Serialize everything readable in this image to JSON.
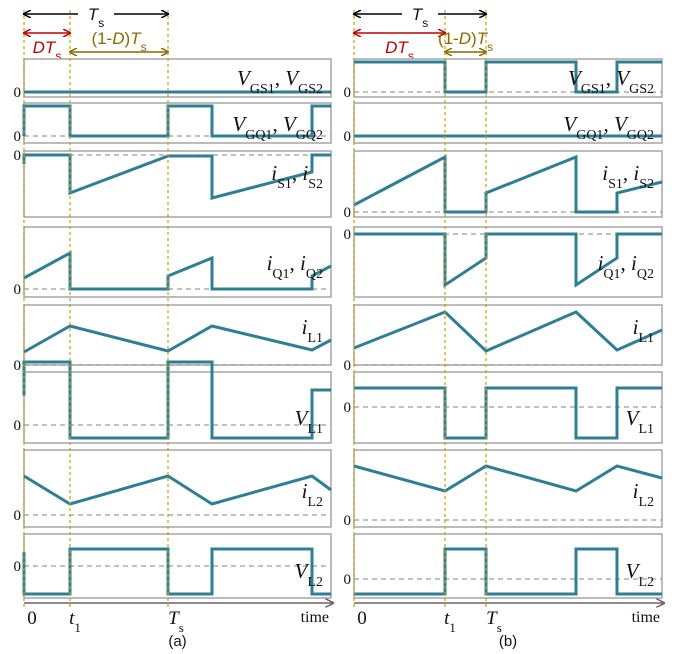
{
  "caption_a": "(a)",
  "caption_b": "(b)",
  "period_label": "T",
  "period_sub": "s",
  "duty_label": "DT",
  "duty_sub": "s",
  "off_label_prefix": "(1-",
  "off_label_d": "D",
  "off_label_suffix": ")",
  "off_label_t": "T",
  "off_label_sub": "s",
  "zero_label": "0",
  "axis_label": "time",
  "ticks": {
    "zero": "0",
    "t1": "t",
    "t1_sub": "1",
    "ts": "T",
    "ts_sub": "s"
  },
  "signals": [
    {
      "main": "V",
      "sub1": "GS1",
      "sep": ", ",
      "main2": "V",
      "sub2": "GS2"
    },
    {
      "main": "V",
      "sub1": "GQ1",
      "sep": ", ",
      "main2": "V",
      "sub2": "GQ2"
    },
    {
      "main": "i",
      "sub1": "S1",
      "sep": ", ",
      "main2": "i",
      "sub2": "S2"
    },
    {
      "main": "i",
      "sub1": "Q1",
      "sep": ", ",
      "main2": "i",
      "sub2": "Q2"
    },
    {
      "main": "i",
      "sub1": "L1",
      "sep": "",
      "main2": "",
      "sub2": ""
    },
    {
      "main": "V",
      "sub1": "L1",
      "sep": "",
      "main2": "",
      "sub2": ""
    },
    {
      "main": "i",
      "sub1": "L2",
      "sep": "",
      "main2": "",
      "sub2": ""
    },
    {
      "main": "V",
      "sub1": "L2",
      "sep": "",
      "main2": "",
      "sub2": ""
    }
  ],
  "colors": {
    "wave": "#2e7f96",
    "duty_arrow": "#c00000",
    "off_arrow": "#8a6a00",
    "grid": "#a6a6a6"
  }
}
